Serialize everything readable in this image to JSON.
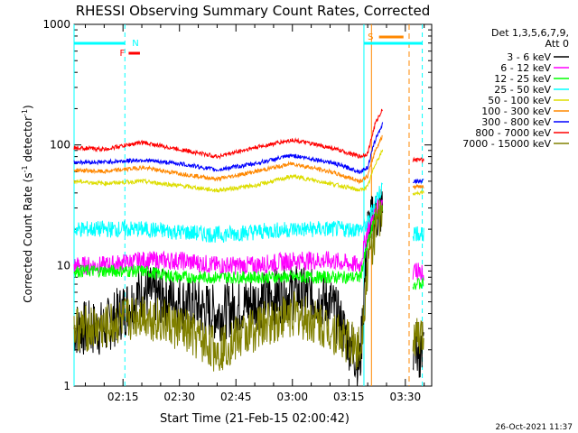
{
  "chart_data": {
    "type": "line",
    "title": "RHESSI Observing Summary Count Rates, Corrected",
    "xlabel": "Start Time (21-Feb-15 02:00:42)",
    "ylabel_main": "Corrected Count Rate (s",
    "ylabel_sup1": "-1",
    "ylabel_mid": " detector",
    "ylabel_sup2": "-1",
    "ylabel_end": ")",
    "timestamp": "26-Oct-2021 11:37",
    "yscale": "log",
    "ylim": [
      1,
      1000
    ],
    "xlim_minutes": [
      2.0,
      37.0
    ],
    "x_ticks": [
      {
        "m": 15,
        "label": "02:15"
      },
      {
        "m": 30,
        "label": "02:30"
      },
      {
        "m": 45,
        "label": "02:45"
      },
      {
        "m": 60,
        "label": "03:00"
      },
      {
        "m": 75,
        "label": "03:15"
      },
      {
        "m": 90,
        "label": "03:30"
      }
    ],
    "y_ticks": [
      {
        "v": 1,
        "label": "1"
      },
      {
        "v": 10,
        "label": "10"
      },
      {
        "v": 100,
        "label": "100"
      },
      {
        "v": 1000,
        "label": "1000"
      }
    ],
    "legend": {
      "header1": "Det 1,3,5,6,7,9,",
      "header2": "Att 0",
      "placement": "right"
    },
    "series": [
      {
        "name": "3 - 6 keV",
        "color": "#000000",
        "x": [
          2,
          10,
          20,
          30,
          40,
          50,
          60,
          70,
          78,
          80,
          82,
          84
        ],
        "y": [
          3,
          3,
          6,
          5,
          4,
          5,
          6,
          5,
          1.5,
          20,
          25,
          30
        ]
      },
      {
        "name": "6 - 12 keV",
        "color": "#ff00ff",
        "x": [
          2,
          10,
          20,
          30,
          40,
          50,
          60,
          70,
          78,
          80,
          82,
          84
        ],
        "y": [
          10,
          10,
          11,
          11,
          10,
          10,
          11,
          11,
          10,
          20,
          28,
          35
        ]
      },
      {
        "name": "12 - 25 keV",
        "color": "#00ff00",
        "x": [
          2,
          10,
          20,
          30,
          40,
          50,
          60,
          70,
          78,
          80,
          82,
          84
        ],
        "y": [
          9,
          9,
          9,
          8,
          8,
          8,
          8,
          8,
          8,
          15,
          25,
          30
        ]
      },
      {
        "name": "25 - 50 keV",
        "color": "#00ffff",
        "x": [
          2,
          10,
          20,
          30,
          40,
          50,
          60,
          70,
          78,
          80,
          82,
          84
        ],
        "y": [
          20,
          20,
          20,
          19,
          18,
          19,
          20,
          20,
          20,
          22,
          35,
          45
        ]
      },
      {
        "name": "50 - 100 keV",
        "color": "#dddd00",
        "x": [
          2,
          10,
          20,
          30,
          40,
          50,
          60,
          70,
          78,
          80,
          82,
          84
        ],
        "y": [
          50,
          48,
          50,
          46,
          42,
          46,
          55,
          48,
          42,
          45,
          70,
          90
        ]
      },
      {
        "name": "100 - 300 keV",
        "color": "#ff8800",
        "x": [
          2,
          10,
          20,
          30,
          40,
          50,
          60,
          70,
          78,
          80,
          82,
          84
        ],
        "y": [
          62,
          60,
          65,
          58,
          52,
          60,
          70,
          60,
          50,
          55,
          90,
          120
        ]
      },
      {
        "name": "300 - 800 keV",
        "color": "#0000ff",
        "x": [
          2,
          10,
          20,
          30,
          40,
          50,
          60,
          70,
          78,
          80,
          82,
          84
        ],
        "y": [
          72,
          72,
          75,
          70,
          62,
          70,
          82,
          72,
          60,
          65,
          110,
          150
        ]
      },
      {
        "name": "800 - 7000 keV",
        "color": "#ff0000",
        "x": [
          2,
          10,
          20,
          30,
          40,
          50,
          60,
          70,
          78,
          80,
          82,
          84
        ],
        "y": [
          95,
          92,
          105,
          92,
          80,
          95,
          110,
          95,
          80,
          85,
          150,
          200
        ]
      },
      {
        "name": "7000 - 15000 keV",
        "color": "#808000",
        "x": [
          2,
          10,
          20,
          30,
          40,
          50,
          60,
          70,
          78,
          80,
          82,
          84
        ],
        "y": [
          3,
          3,
          4,
          3,
          2,
          3,
          4,
          3,
          2,
          10,
          20,
          25
        ]
      }
    ],
    "after_gap": [
      {
        "name": "3 - 6 keV",
        "x": [
          92,
          95
        ],
        "y": [
          2,
          2
        ]
      },
      {
        "name": "6 - 12 keV",
        "x": [
          92,
          95
        ],
        "y": [
          9,
          9
        ]
      },
      {
        "name": "12 - 25 keV",
        "x": [
          92,
          95
        ],
        "y": [
          7,
          7
        ]
      },
      {
        "name": "25 - 50 keV",
        "x": [
          92,
          95
        ],
        "y": [
          18,
          18
        ]
      },
      {
        "name": "50 - 100 keV",
        "x": [
          92,
          95
        ],
        "y": [
          40,
          40
        ]
      },
      {
        "name": "100 - 300 keV",
        "x": [
          92,
          95
        ],
        "y": [
          45,
          45
        ]
      },
      {
        "name": "300 - 800 keV",
        "x": [
          92,
          95
        ],
        "y": [
          50,
          50
        ]
      },
      {
        "name": "800 - 7000 keV",
        "x": [
          92,
          95
        ],
        "y": [
          75,
          75
        ]
      },
      {
        "name": "7000 - 15000 keV",
        "x": [
          92,
          95
        ],
        "y": [
          2.5,
          2.5
        ]
      }
    ],
    "markers": {
      "N": {
        "label": "N",
        "color": "#00ffff"
      },
      "F": {
        "label": "F",
        "color": "#ff0000"
      },
      "S": {
        "label": "S",
        "color": "#ff8800"
      }
    }
  }
}
